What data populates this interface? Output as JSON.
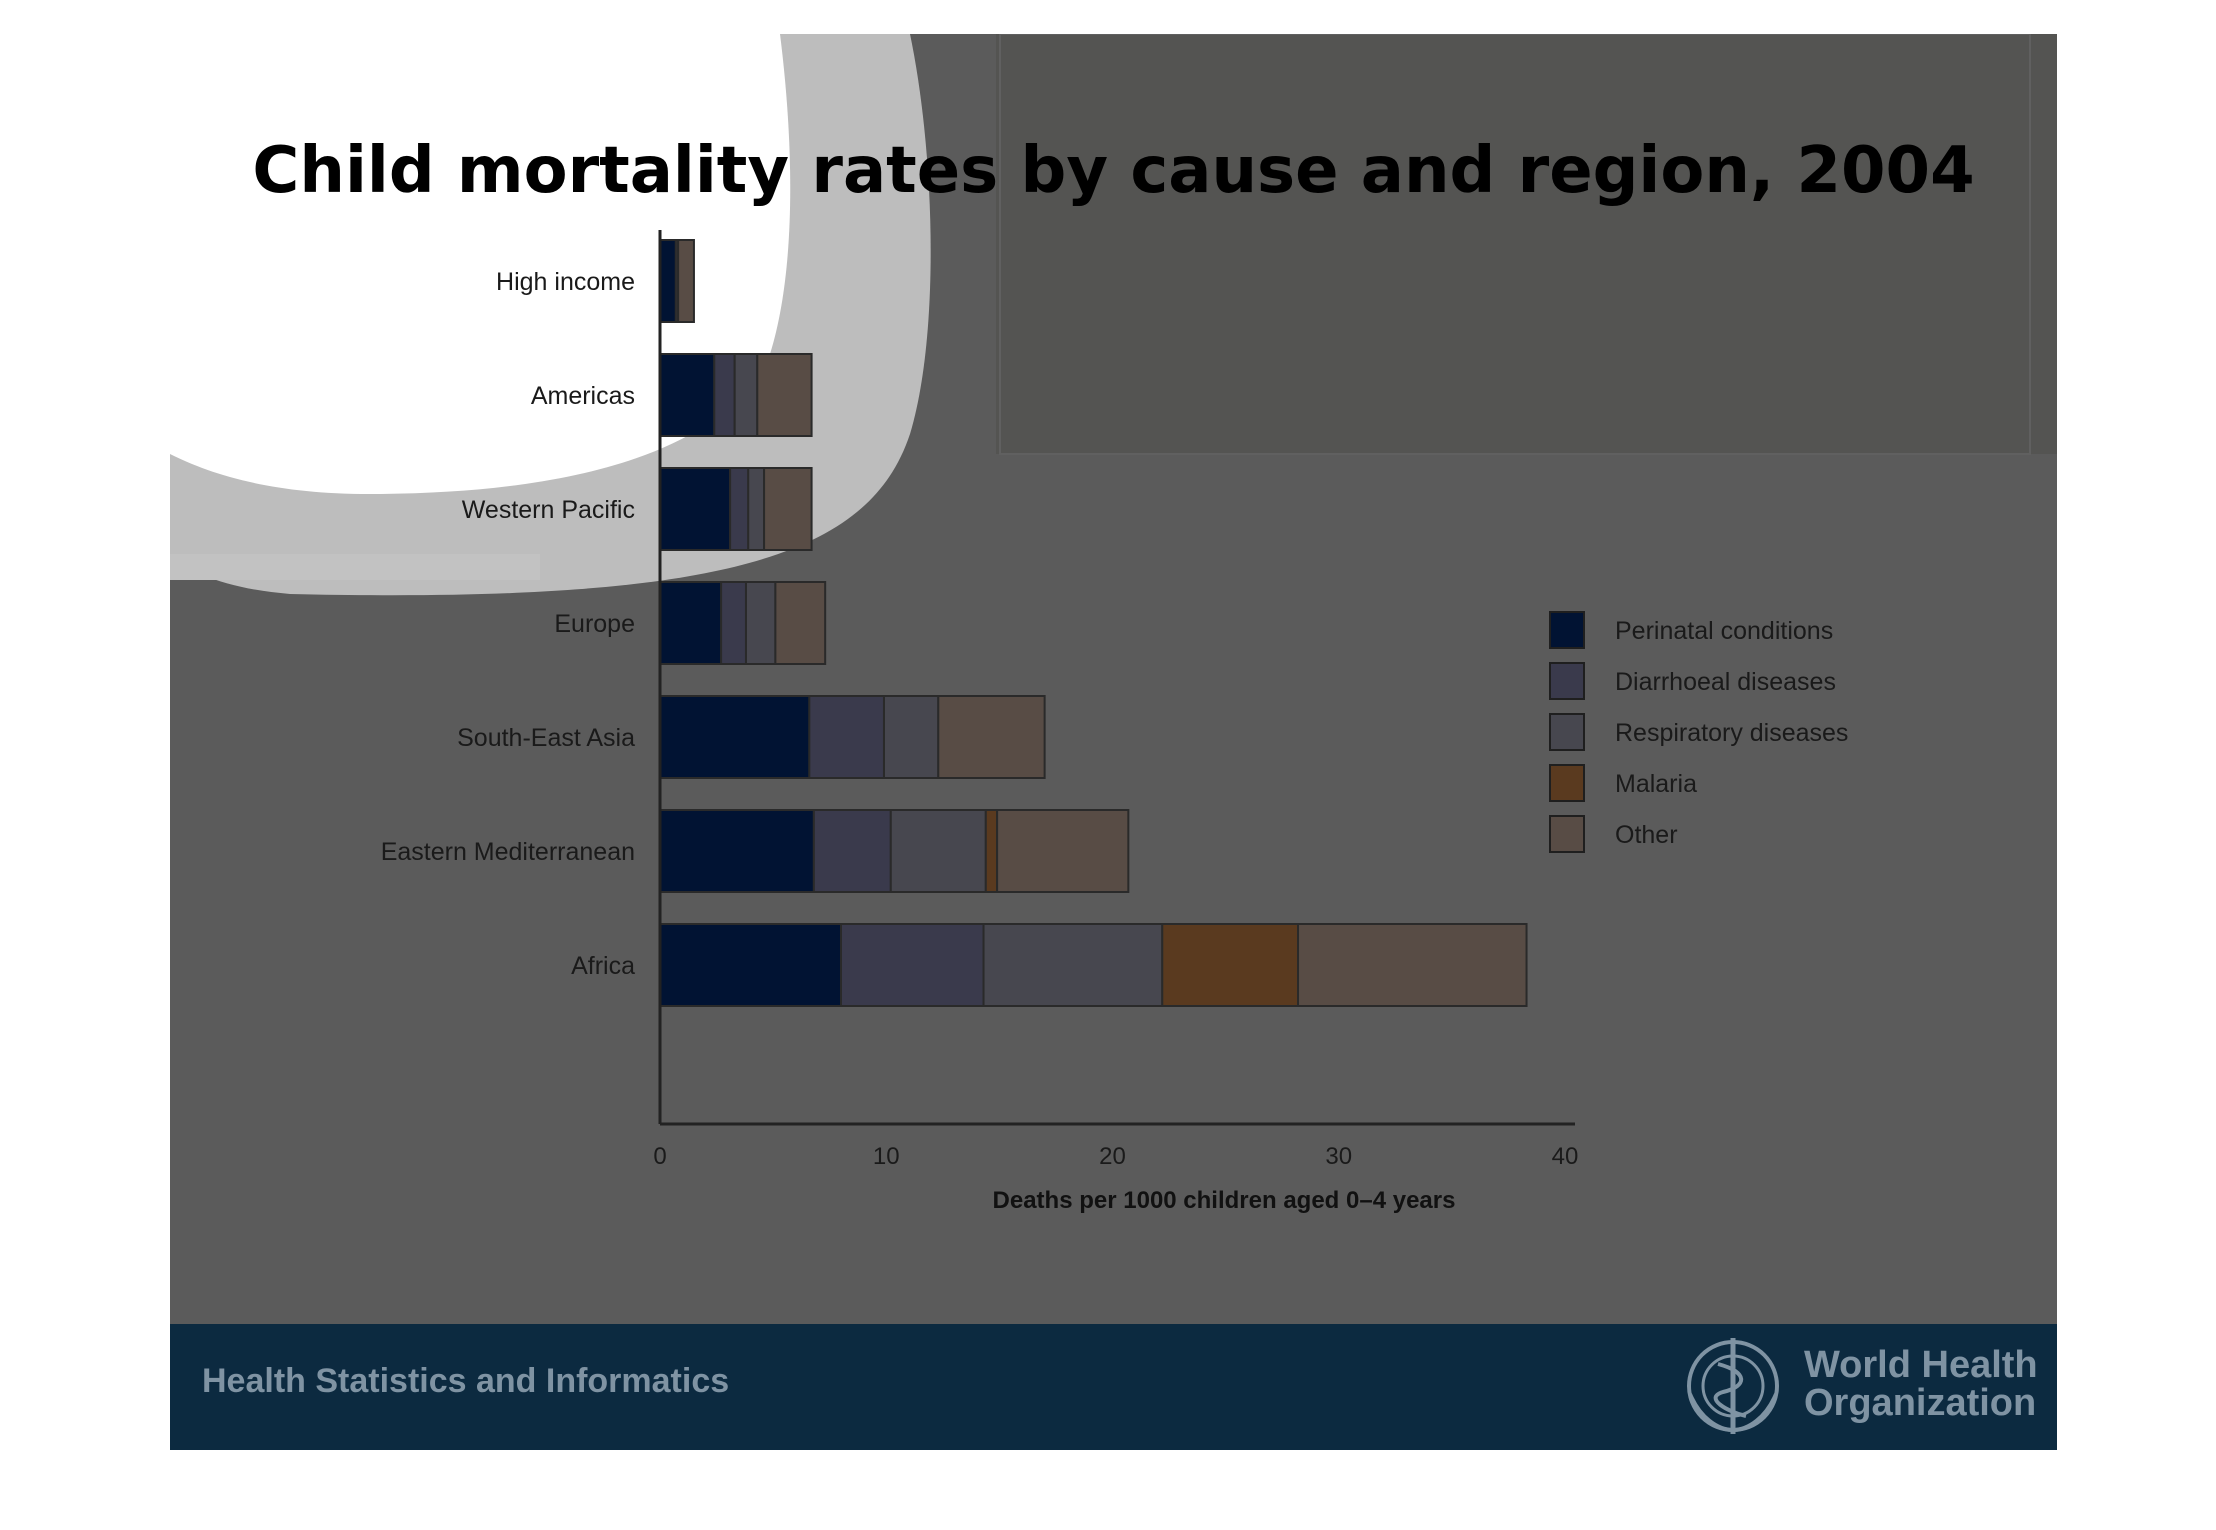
{
  "slide": {
    "title": "Child mortality rates by cause and region, 2004",
    "footer_text": "Health Statistics and Informatics",
    "org_name_line1": "World Health",
    "org_name_line2": "Organization"
  },
  "chart_data": {
    "type": "bar",
    "orientation": "horizontal",
    "stacked": true,
    "title": "Child mortality rates by cause and region, 2004",
    "xlabel": "Deaths per 1000 children aged 0–4 years",
    "ylabel": "",
    "xlim": [
      0,
      40
    ],
    "xticks": [
      "0",
      "10",
      "20",
      "30",
      "40"
    ],
    "grid": false,
    "legend_position": "right",
    "categories": [
      "High income",
      "Americas",
      "Western Pacific",
      "Europe",
      "South-East Asia",
      "Eastern Mediterranean",
      "Africa"
    ],
    "series": [
      {
        "name": "Perinatal conditions",
        "color": "#011333",
        "values": [
          0.7,
          2.4,
          3.1,
          2.7,
          6.6,
          6.8,
          8.0
        ]
      },
      {
        "name": "Diarrhoeal diseases",
        "color": "#3a3a4c",
        "values": [
          0.0,
          0.9,
          0.8,
          1.1,
          3.3,
          3.4,
          6.3
        ]
      },
      {
        "name": "Respiratory diseases",
        "color": "#47474f",
        "values": [
          0.1,
          1.0,
          0.7,
          1.3,
          2.4,
          4.2,
          7.9
        ]
      },
      {
        "name": "Malaria",
        "color": "#5a3a1f",
        "values": [
          0.0,
          0.0,
          0.0,
          0.0,
          0.0,
          0.5,
          6.0
        ]
      },
      {
        "name": "Other",
        "color": "#584c45",
        "values": [
          0.7,
          2.4,
          2.1,
          2.2,
          4.7,
          5.8,
          10.1
        ]
      }
    ]
  }
}
